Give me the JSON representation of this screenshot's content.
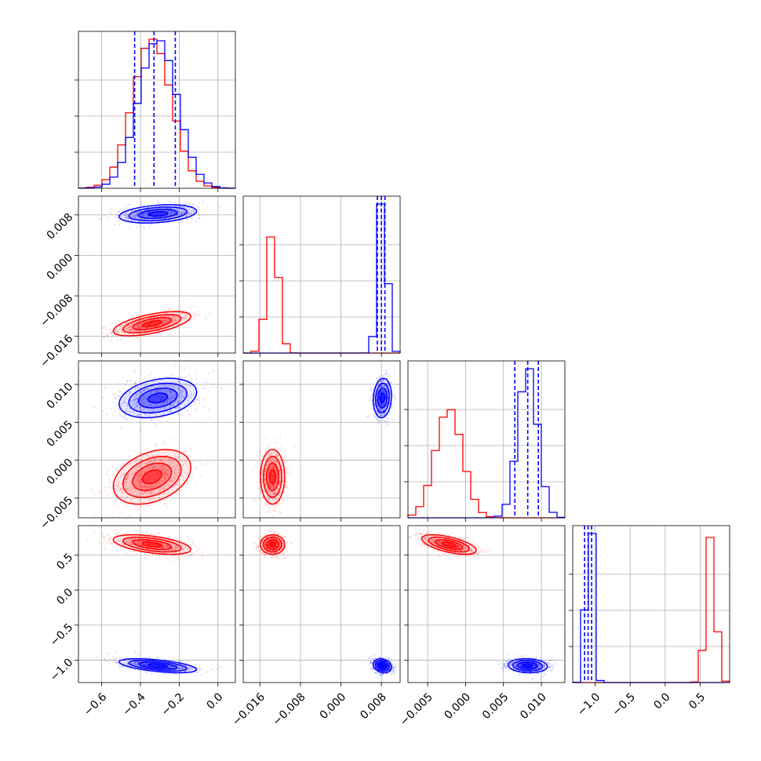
{
  "chart_data": {
    "type": "corner",
    "grid": true,
    "colors": {
      "series_a": "#ff0000",
      "series_b": "#0000ff"
    },
    "series": [
      {
        "color": "#ff0000",
        "params": [
          {
            "mean": -0.34,
            "sd": 0.1
          },
          {
            "mean": -0.0135,
            "sd": 0.0012
          },
          {
            "mean": -0.0022,
            "sd": 0.0018
          },
          {
            "mean": 0.65,
            "sd": 0.07
          }
        ]
      },
      {
        "color": "#0000ff",
        "params": [
          {
            "mean": -0.31,
            "sd": 0.1
          },
          {
            "mean": 0.0082,
            "sd": 0.0009
          },
          {
            "mean": 0.0082,
            "sd": 0.0013
          },
          {
            "mean": -1.08,
            "sd": 0.05
          }
        ]
      }
    ],
    "quantile_lines": [
      {
        "param": 0,
        "color": "#0000ff",
        "values": [
          -0.43,
          -0.33,
          -0.22
        ]
      },
      {
        "param": 1,
        "color": "#0000ff",
        "values": [
          0.0072,
          0.008,
          0.0087
        ]
      },
      {
        "param": 2,
        "color": "#0000ff",
        "values": [
          0.0065,
          0.0082,
          0.0096
        ]
      },
      {
        "param": 3,
        "color": "#0000ff",
        "values": [
          -1.15,
          -1.1,
          -1.05
        ]
      }
    ],
    "axes": [
      {
        "range": [
          -0.72,
          0.09
        ],
        "ticks": [
          -0.6,
          -0.4,
          -0.2,
          0.0
        ],
        "tick_labels": [
          "−0.6",
          "−0.4",
          "−0.2",
          "0.0"
        ]
      },
      {
        "range": [
          -0.0193,
          0.0117
        ],
        "ticks": [
          -0.016,
          -0.008,
          0.0,
          0.008
        ],
        "tick_labels": [
          "−0.016",
          "−0.008",
          "0.000",
          "0.008"
        ]
      },
      {
        "range": [
          -0.0076,
          0.0131
        ],
        "ticks": [
          -0.005,
          0.0,
          0.005,
          0.01
        ],
        "tick_labels": [
          "−0.005",
          "0.000",
          "0.005",
          "0.010"
        ]
      },
      {
        "range": [
          -1.32,
          0.92
        ],
        "ticks": [
          -1.0,
          -0.5,
          0.0,
          0.5
        ],
        "tick_labels": [
          "−1.0",
          "−0.5",
          "0.0",
          "0.5"
        ]
      }
    ],
    "row_axes": [
      null,
      {
        "ticks": [
          0.008,
          0.0,
          -0.008,
          -0.016
        ],
        "tick_labels": [
          "0.008",
          "0.000",
          "−0.008",
          "−0.016"
        ]
      },
      {
        "ticks": [
          0.01,
          0.005,
          0.0,
          -0.005
        ],
        "tick_labels": [
          "0.010",
          "0.005",
          "0.000",
          "−0.005"
        ]
      },
      {
        "ticks": [
          0.5,
          0.0,
          -0.5,
          -1.0
        ],
        "tick_labels": [
          "0.5",
          "0.0",
          "−0.5",
          "−1.0"
        ]
      }
    ],
    "correlations": [
      {
        "pair": [
          0,
          1
        ],
        "red": 0.6,
        "blue": 0.3
      },
      {
        "pair": [
          0,
          2
        ],
        "red": 0.35,
        "blue": 0.3
      },
      {
        "pair": [
          1,
          2
        ],
        "red": 0.0,
        "blue": 0.1
      },
      {
        "pair": [
          0,
          3
        ],
        "red": -0.5,
        "blue": -0.55
      },
      {
        "pair": [
          1,
          3
        ],
        "red": 0.0,
        "blue": -0.2
      },
      {
        "pair": [
          2,
          3
        ],
        "red": -0.6,
        "blue": -0.1
      }
    ]
  }
}
